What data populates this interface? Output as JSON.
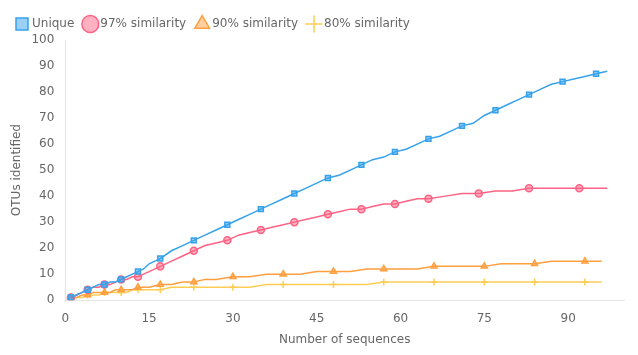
{
  "chart_data": {
    "type": "line",
    "xlabel": "Number of sequences",
    "ylabel": "OTUs identified",
    "xlim": [
      0,
      100
    ],
    "ylim": [
      0,
      100
    ],
    "xticks": [
      0,
      15,
      30,
      45,
      60,
      75,
      90
    ],
    "yticks": [
      0,
      10,
      20,
      30,
      40,
      50,
      60,
      70,
      80,
      90,
      100
    ],
    "grid": false,
    "legend": "upper left",
    "series": [
      {
        "name": "Unique",
        "marker": "square",
        "x": [
          1,
          2,
          3,
          4,
          5,
          6,
          7,
          8,
          9,
          10,
          11,
          12,
          13,
          14,
          15,
          17,
          19,
          21,
          23,
          25,
          27,
          29,
          31,
          33,
          35,
          37,
          39,
          41,
          43,
          45,
          47,
          49,
          51,
          53,
          55,
          57,
          59,
          61,
          63,
          65,
          67,
          69,
          71,
          73,
          75,
          77,
          79,
          81,
          83,
          85,
          87,
          89,
          91,
          93,
          95,
          97
        ],
        "values": [
          1,
          2,
          3,
          4,
          5,
          6,
          6,
          7,
          7,
          8,
          9,
          10,
          11,
          12,
          14,
          16,
          19,
          21,
          23,
          25,
          27,
          29,
          31,
          33,
          35,
          37,
          39,
          41,
          43,
          45,
          47,
          48,
          50,
          52,
          54,
          55,
          57,
          58,
          60,
          62,
          63,
          65,
          67,
          68,
          71,
          73,
          75,
          77,
          79,
          81,
          83,
          84,
          85,
          86,
          87,
          88
        ]
      },
      {
        "name": "97% similarity",
        "marker": "circle",
        "x": [
          1,
          2,
          3,
          4,
          5,
          6,
          7,
          8,
          9,
          10,
          11,
          12,
          13,
          14,
          15,
          17,
          19,
          21,
          23,
          25,
          27,
          29,
          31,
          33,
          35,
          37,
          39,
          41,
          43,
          45,
          47,
          49,
          51,
          53,
          55,
          57,
          59,
          61,
          63,
          65,
          68,
          71,
          74,
          77,
          80,
          83,
          86,
          89,
          92,
          95,
          97
        ],
        "values": [
          1,
          2,
          3,
          4,
          5,
          5,
          6,
          6,
          7,
          8,
          8,
          9,
          9,
          10,
          11,
          13,
          15,
          17,
          19,
          21,
          22,
          23,
          25,
          26,
          27,
          28,
          29,
          30,
          31,
          32,
          33,
          34,
          35,
          35,
          36,
          37,
          37,
          38,
          39,
          39,
          40,
          41,
          41,
          42,
          42,
          43,
          43,
          43,
          43,
          43,
          43
        ]
      },
      {
        "name": "90% similarity",
        "marker": "triangle",
        "x": [
          1,
          2,
          3,
          4,
          5,
          6,
          7,
          8,
          9,
          10,
          11,
          12,
          13,
          14,
          15,
          17,
          19,
          21,
          23,
          25,
          27,
          30,
          33,
          36,
          39,
          42,
          45,
          48,
          51,
          54,
          57,
          60,
          63,
          66,
          69,
          72,
          75,
          78,
          81,
          84,
          87,
          90,
          93,
          96
        ],
        "values": [
          1,
          1,
          2,
          2,
          3,
          3,
          3,
          3,
          4,
          4,
          4,
          4,
          5,
          5,
          5,
          6,
          6,
          7,
          7,
          8,
          8,
          9,
          9,
          10,
          10,
          10,
          11,
          11,
          11,
          12,
          12,
          12,
          12,
          13,
          13,
          13,
          13,
          14,
          14,
          14,
          15,
          15,
          15,
          15
        ]
      },
      {
        "name": "80% similarity",
        "marker": "plus",
        "x": [
          1,
          2,
          3,
          4,
          5,
          6,
          7,
          8,
          9,
          10,
          11,
          12,
          13,
          14,
          15,
          17,
          19,
          21,
          23,
          25,
          27,
          30,
          33,
          36,
          39,
          42,
          45,
          48,
          51,
          54,
          57,
          60,
          63,
          66,
          69,
          72,
          75,
          78,
          81,
          84,
          87,
          90,
          93,
          96
        ],
        "values": [
          1,
          1,
          1,
          2,
          2,
          2,
          3,
          3,
          3,
          3,
          3,
          4,
          4,
          4,
          4,
          4,
          5,
          5,
          5,
          5,
          5,
          5,
          5,
          6,
          6,
          6,
          6,
          6,
          6,
          6,
          7,
          7,
          7,
          7,
          7,
          7,
          7,
          7,
          7,
          7,
          7,
          7,
          7,
          7
        ]
      }
    ]
  }
}
